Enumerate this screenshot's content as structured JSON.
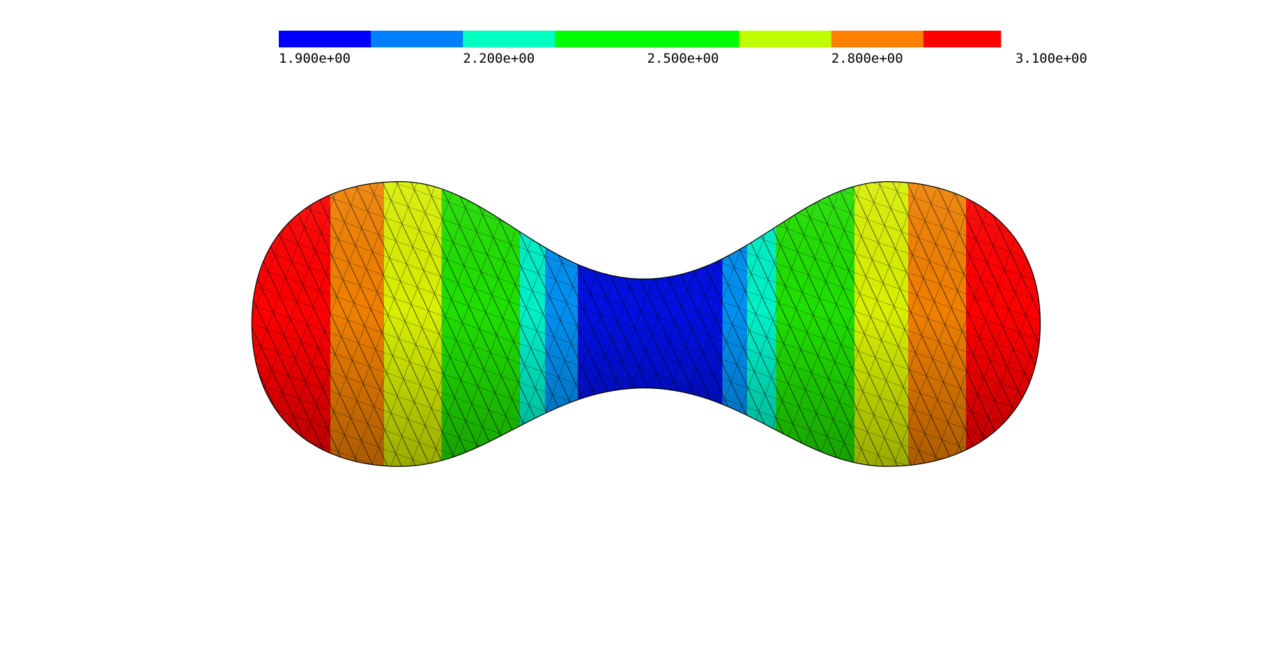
{
  "colorbar": {
    "range": [
      1.9,
      3.076
    ],
    "colors": [
      "#0000ff",
      "#0080ff",
      "#00ffc0",
      "#00ff00",
      "#00ff00",
      "#c0ff00",
      "#ff8000",
      "#ff0000"
    ],
    "ticks": [
      {
        "value": 1.9,
        "label": "1.900e+00"
      },
      {
        "value": 2.2,
        "label": "2.200e+00"
      },
      {
        "value": 2.5,
        "label": "2.500e+00"
      },
      {
        "value": 2.8,
        "label": "2.800e+00"
      },
      {
        "value": 3.1,
        "label": "3.100e+00"
      }
    ]
  }
}
